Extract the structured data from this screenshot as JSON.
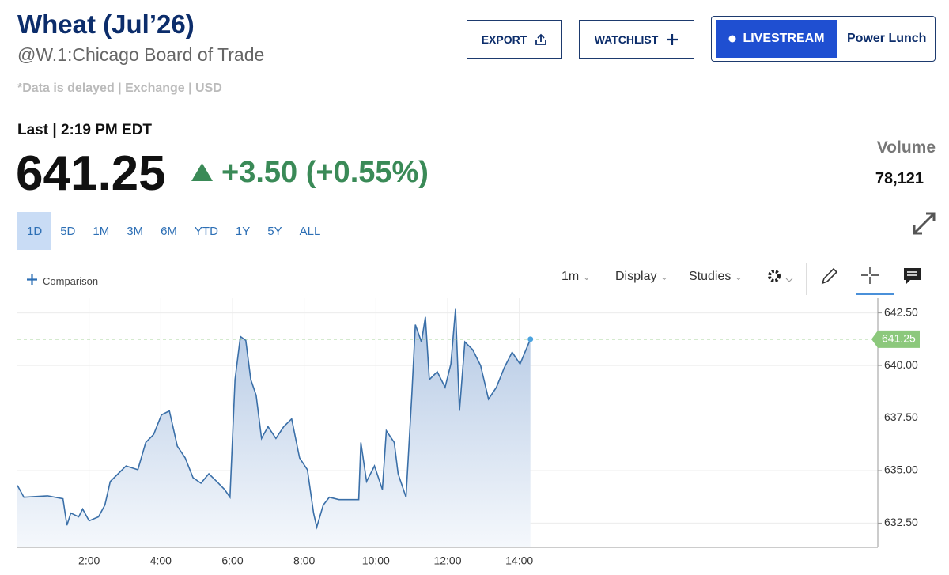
{
  "header": {
    "title": "Wheat (Jul’26)",
    "symbol": "@W.1:Chicago Board of Trade",
    "note": "*Data is delayed | Exchange | USD"
  },
  "buttons": {
    "export": "EXPORT",
    "watchlist": "WATCHLIST",
    "livestream": "LIVESTREAM",
    "show": "Power Lunch"
  },
  "quote": {
    "last_label": "Last | 2:19 PM EDT",
    "price": "641.25",
    "change": "+3.50 (+0.55%)",
    "volume_label": "Volume",
    "volume": "78,121"
  },
  "ranges": [
    "1D",
    "5D",
    "1M",
    "3M",
    "6M",
    "YTD",
    "1Y",
    "5Y",
    "ALL"
  ],
  "toolbar": {
    "comparison": "Comparison",
    "interval": "1m",
    "display": "Display",
    "studies": "Studies"
  },
  "chart_data": {
    "type": "line",
    "color": "#3a6fa8",
    "grid": true,
    "x": [
      0,
      0.18,
      0.84,
      1.27,
      1.38,
      1.49,
      1.71,
      1.82,
      2.0,
      2.26,
      2.44,
      2.59,
      2.81,
      3.03,
      3.36,
      3.58,
      3.8,
      4.02,
      4.24,
      4.46,
      4.68,
      4.9,
      5.12,
      5.34,
      5.56,
      5.78,
      5.93,
      6.07,
      6.22,
      6.37,
      6.51,
      6.66,
      6.81,
      6.99,
      7.21,
      7.43,
      7.65,
      7.87,
      8.09,
      8.26,
      8.35,
      8.53,
      8.7,
      8.97,
      9.52,
      9.58,
      9.74,
      9.96,
      10.18,
      10.29,
      10.51,
      10.62,
      10.84,
      11.0,
      11.1,
      11.27,
      11.38,
      11.49,
      11.71,
      11.93,
      12.09,
      12.22,
      12.33,
      12.48,
      12.7,
      12.92,
      13.14,
      13.36,
      13.58,
      13.8,
      14.02,
      14.31
    ],
    "values": [
      634.29,
      633.73,
      633.8,
      633.66,
      632.4,
      632.98,
      632.8,
      633.17,
      632.61,
      632.8,
      633.36,
      634.48,
      634.85,
      635.22,
      635.04,
      636.34,
      636.72,
      637.65,
      637.84,
      636.16,
      635.6,
      634.66,
      634.4,
      634.85,
      634.48,
      634.1,
      633.73,
      639.33,
      641.38,
      641.19,
      639.33,
      638.58,
      636.53,
      637.09,
      636.53,
      637.09,
      637.46,
      635.6,
      635.04,
      632.98,
      632.31,
      633.36,
      633.73,
      633.62,
      633.62,
      636.34,
      634.48,
      635.22,
      634.1,
      636.9,
      636.34,
      634.85,
      633.73,
      638.58,
      641.94,
      641.12,
      642.31,
      639.33,
      639.7,
      638.96,
      640.07,
      642.69,
      637.84,
      641.12,
      640.75,
      640.0,
      638.4,
      638.96,
      639.89,
      640.63,
      640.07,
      641.25
    ],
    "last_value": 641.25,
    "last_color": "#8cc87c",
    "xlim": [
      0,
      24
    ],
    "xticks": [
      {
        "value": 2,
        "label": "2:00"
      },
      {
        "value": 4,
        "label": "4:00"
      },
      {
        "value": 6,
        "label": "6:00"
      },
      {
        "value": 8,
        "label": "8:00"
      },
      {
        "value": 10,
        "label": "10:00"
      },
      {
        "value": 12,
        "label": "12:00"
      },
      {
        "value": 14,
        "label": "14:00"
      }
    ],
    "ylim": [
      631.35,
      643.2
    ],
    "yticks": [
      {
        "value": 632.5,
        "label": "632.50"
      },
      {
        "value": 635,
        "label": "635.00"
      },
      {
        "value": 637.5,
        "label": "637.50"
      },
      {
        "value": 640,
        "label": "640.00"
      },
      {
        "value": 642.5,
        "label": "642.50"
      }
    ]
  }
}
